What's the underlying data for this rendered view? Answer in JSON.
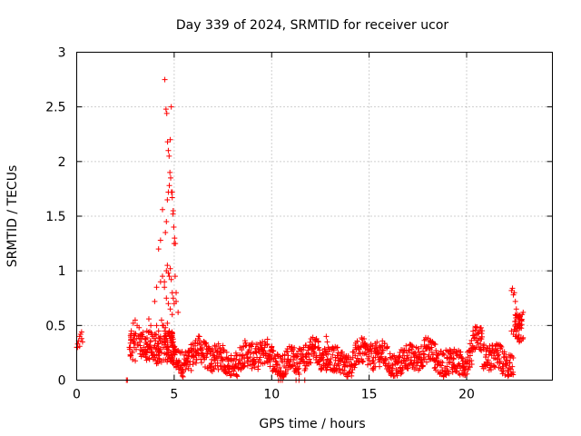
{
  "chart_data": {
    "type": "scatter",
    "title": "Day 339 of 2024, SRMTID for receiver ucor",
    "xlabel": "GPS time / hours",
    "ylabel": "SRMTID / TECUs",
    "xlim": [
      0,
      24.4
    ],
    "ylim": [
      0,
      3
    ],
    "xticks": [
      0,
      5,
      10,
      15,
      20
    ],
    "xtick_labels": [
      "0",
      "5",
      "10",
      "15",
      "20"
    ],
    "yticks": [
      0,
      0.5,
      1,
      1.5,
      2,
      2.5,
      3
    ],
    "ytick_labels": [
      "0",
      "0.5",
      "1",
      "1.5",
      "2",
      "2.5",
      "3"
    ],
    "grid": true,
    "marker": "+",
    "color": "#ff0000",
    "series": [
      {
        "name": "SRMTID",
        "x": [
          0.0,
          0.05,
          0.1,
          0.15,
          0.2,
          0.25,
          0.3,
          0.05,
          0.15,
          0.25,
          2.55,
          2.6,
          10.35,
          10.45,
          10.55,
          11.25,
          11.4,
          11.7,
          2.7,
          2.8,
          2.9,
          3.0,
          3.1,
          3.2,
          3.3,
          3.4,
          3.5,
          3.6,
          3.7,
          3.8,
          3.9,
          4.0,
          4.1,
          4.2,
          4.3,
          4.4,
          4.5,
          2.75,
          2.85,
          2.95,
          3.05,
          3.15,
          3.25,
          3.35,
          3.45,
          3.55,
          3.65,
          3.75,
          3.85,
          3.95,
          4.05,
          4.15,
          4.25,
          4.35,
          4.45,
          4.0,
          4.1,
          4.2,
          4.3,
          4.4,
          4.5,
          4.55,
          4.6,
          4.65,
          4.7,
          4.75,
          4.8,
          4.85,
          4.9,
          4.95,
          5.0,
          5.05,
          5.1,
          4.52,
          4.58,
          4.62,
          4.66,
          4.7,
          4.74,
          4.78,
          4.82,
          4.86,
          4.9,
          4.94,
          4.98,
          5.02,
          5.06,
          4.3,
          4.4,
          4.5,
          4.6,
          4.7,
          4.8,
          4.9,
          5.0,
          5.1,
          5.2,
          4.35,
          4.45,
          4.55,
          4.65,
          4.75,
          4.85,
          4.95,
          4.6,
          4.65,
          4.7,
          4.75,
          4.8,
          4.85,
          4.9,
          4.95,
          4.5,
          4.55,
          4.6,
          4.65,
          4.7,
          4.75,
          4.8,
          4.85,
          4.9,
          4.95,
          5.0,
          5.05,
          22.3,
          22.35,
          22.4,
          22.45,
          22.5,
          22.55,
          22.6,
          22.65,
          22.7,
          22.75,
          22.8,
          22.85,
          22.9,
          22.3,
          22.4,
          22.5,
          22.6,
          22.7,
          22.8,
          12.8,
          12.85,
          12.9
        ],
        "y": [
          0.3,
          0.33,
          0.36,
          0.4,
          0.42,
          0.38,
          0.35,
          0.3,
          0.31,
          0.44,
          0.0,
          0.0,
          0.0,
          0.0,
          0.0,
          0.0,
          0.0,
          0.0,
          0.3,
          0.45,
          0.52,
          0.55,
          0.5,
          0.48,
          0.42,
          0.4,
          0.38,
          0.45,
          0.56,
          0.5,
          0.4,
          0.42,
          0.5,
          0.45,
          0.4,
          0.5,
          0.45,
          0.22,
          0.25,
          0.3,
          0.28,
          0.32,
          0.24,
          0.27,
          0.3,
          0.25,
          0.28,
          0.32,
          0.26,
          0.3,
          0.28,
          0.33,
          0.27,
          0.25,
          0.3,
          0.72,
          0.85,
          1.2,
          1.28,
          1.56,
          0.9,
          1.35,
          1.45,
          1.65,
          1.72,
          1.78,
          2.2,
          2.5,
          1.72,
          1.55,
          1.25,
          0.95,
          0.8,
          2.75,
          2.48,
          2.44,
          2.18,
          2.1,
          2.05,
          1.9,
          1.85,
          1.72,
          1.67,
          1.52,
          1.4,
          1.3,
          1.25,
          0.9,
          0.95,
          0.85,
          0.75,
          0.7,
          0.65,
          0.6,
          0.7,
          0.72,
          0.62,
          0.55,
          0.5,
          0.48,
          0.52,
          0.45,
          0.4,
          0.35,
          1.0,
          1.05,
          0.98,
          0.95,
          1.02,
          0.92,
          0.8,
          0.75,
          0.35,
          0.4,
          0.38,
          0.36,
          0.42,
          0.4,
          0.38,
          0.36,
          0.34,
          0.32,
          0.3,
          0.28,
          0.82,
          0.84,
          0.78,
          0.8,
          0.72,
          0.65,
          0.6,
          0.58,
          0.52,
          0.5,
          0.55,
          0.6,
          0.62,
          0.45,
          0.42,
          0.4,
          0.38,
          0.35,
          0.36,
          0.4,
          0.35,
          0.3
        ]
      }
    ],
    "baseline_noise": {
      "description": "dense cloud of points between 0.05 and 0.4 TECU from 5 h to 22.5 h",
      "x_range": [
        5.0,
        22.4
      ],
      "y_center": 0.2,
      "y_spread": 0.12,
      "count": 1200
    }
  }
}
